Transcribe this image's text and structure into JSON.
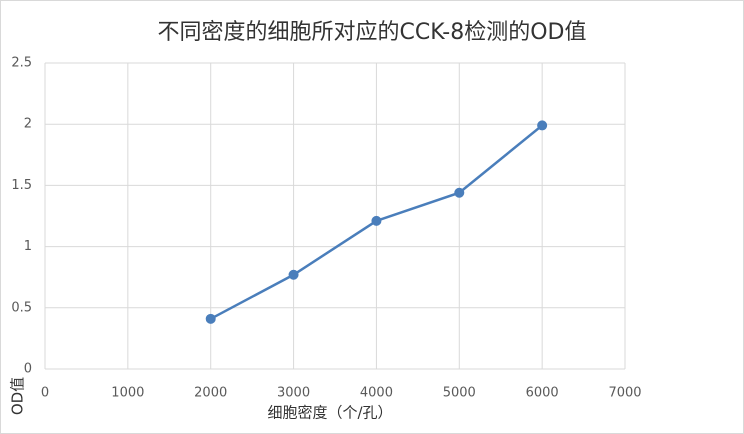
{
  "chart_data": {
    "type": "line",
    "title": "不同密度的细胞所对应的CCK-8检测的OD值",
    "x_label": "细胞密度（个/孔）",
    "y_label": "OD值",
    "x": [
      2000,
      3000,
      4000,
      5000,
      6000
    ],
    "series": [
      {
        "color": "#4a7ebb",
        "values": [
          0.41,
          0.77,
          1.21,
          1.44,
          1.99
        ]
      }
    ],
    "xlim": [
      0,
      7000
    ],
    "xticks": [
      0,
      1000,
      2000,
      3000,
      4000,
      5000,
      6000,
      7000
    ],
    "ylim": [
      0,
      2.5
    ],
    "yticks": [
      0,
      0.5,
      1,
      1.5,
      2,
      2.5
    ],
    "grid": true
  }
}
